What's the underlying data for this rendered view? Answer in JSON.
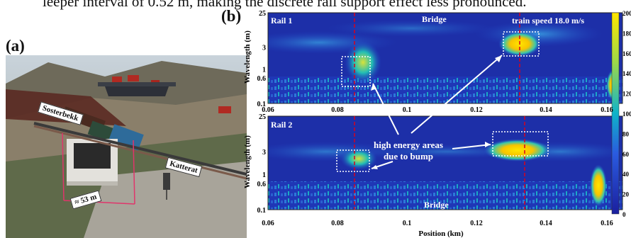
{
  "caption_fragment": "leeper interval of 0.52 m, making the discrete rail support effect less pronounced.",
  "panel_a": {
    "label": "(a)",
    "annotations": {
      "sosterbekk": "Sosterbekk",
      "katterat": "Katterat",
      "span": "≈ 53 m"
    }
  },
  "panel_b": {
    "label": "(b)",
    "speed_label": "train speed 18.0 m/s",
    "energy_note_line1": "high energy areas",
    "energy_note_line2": "due to bump",
    "y_label": "Wavelength (m)",
    "x_label": "Position (km)",
    "y_ticks": [
      "25",
      "3",
      "1",
      "0.6",
      "0.1"
    ],
    "x_ticks": [
      "0.06",
      "0.08",
      "0.1",
      "0.12",
      "0.14",
      "0.16"
    ],
    "rail1": {
      "name": "Rail 1",
      "bridge_label": "Bridge"
    },
    "rail2": {
      "name": "Rail 2",
      "bridge_label": "Bridge"
    },
    "colorbar_ticks": [
      "200",
      "180",
      "160",
      "140",
      "120",
      "100",
      "80",
      "60",
      "40",
      "20",
      "0"
    ],
    "colors": {
      "low": "#1b1f9e",
      "mid": "#0fb3c9",
      "high": "#ffe600",
      "marker": "#d8001c"
    }
  }
}
